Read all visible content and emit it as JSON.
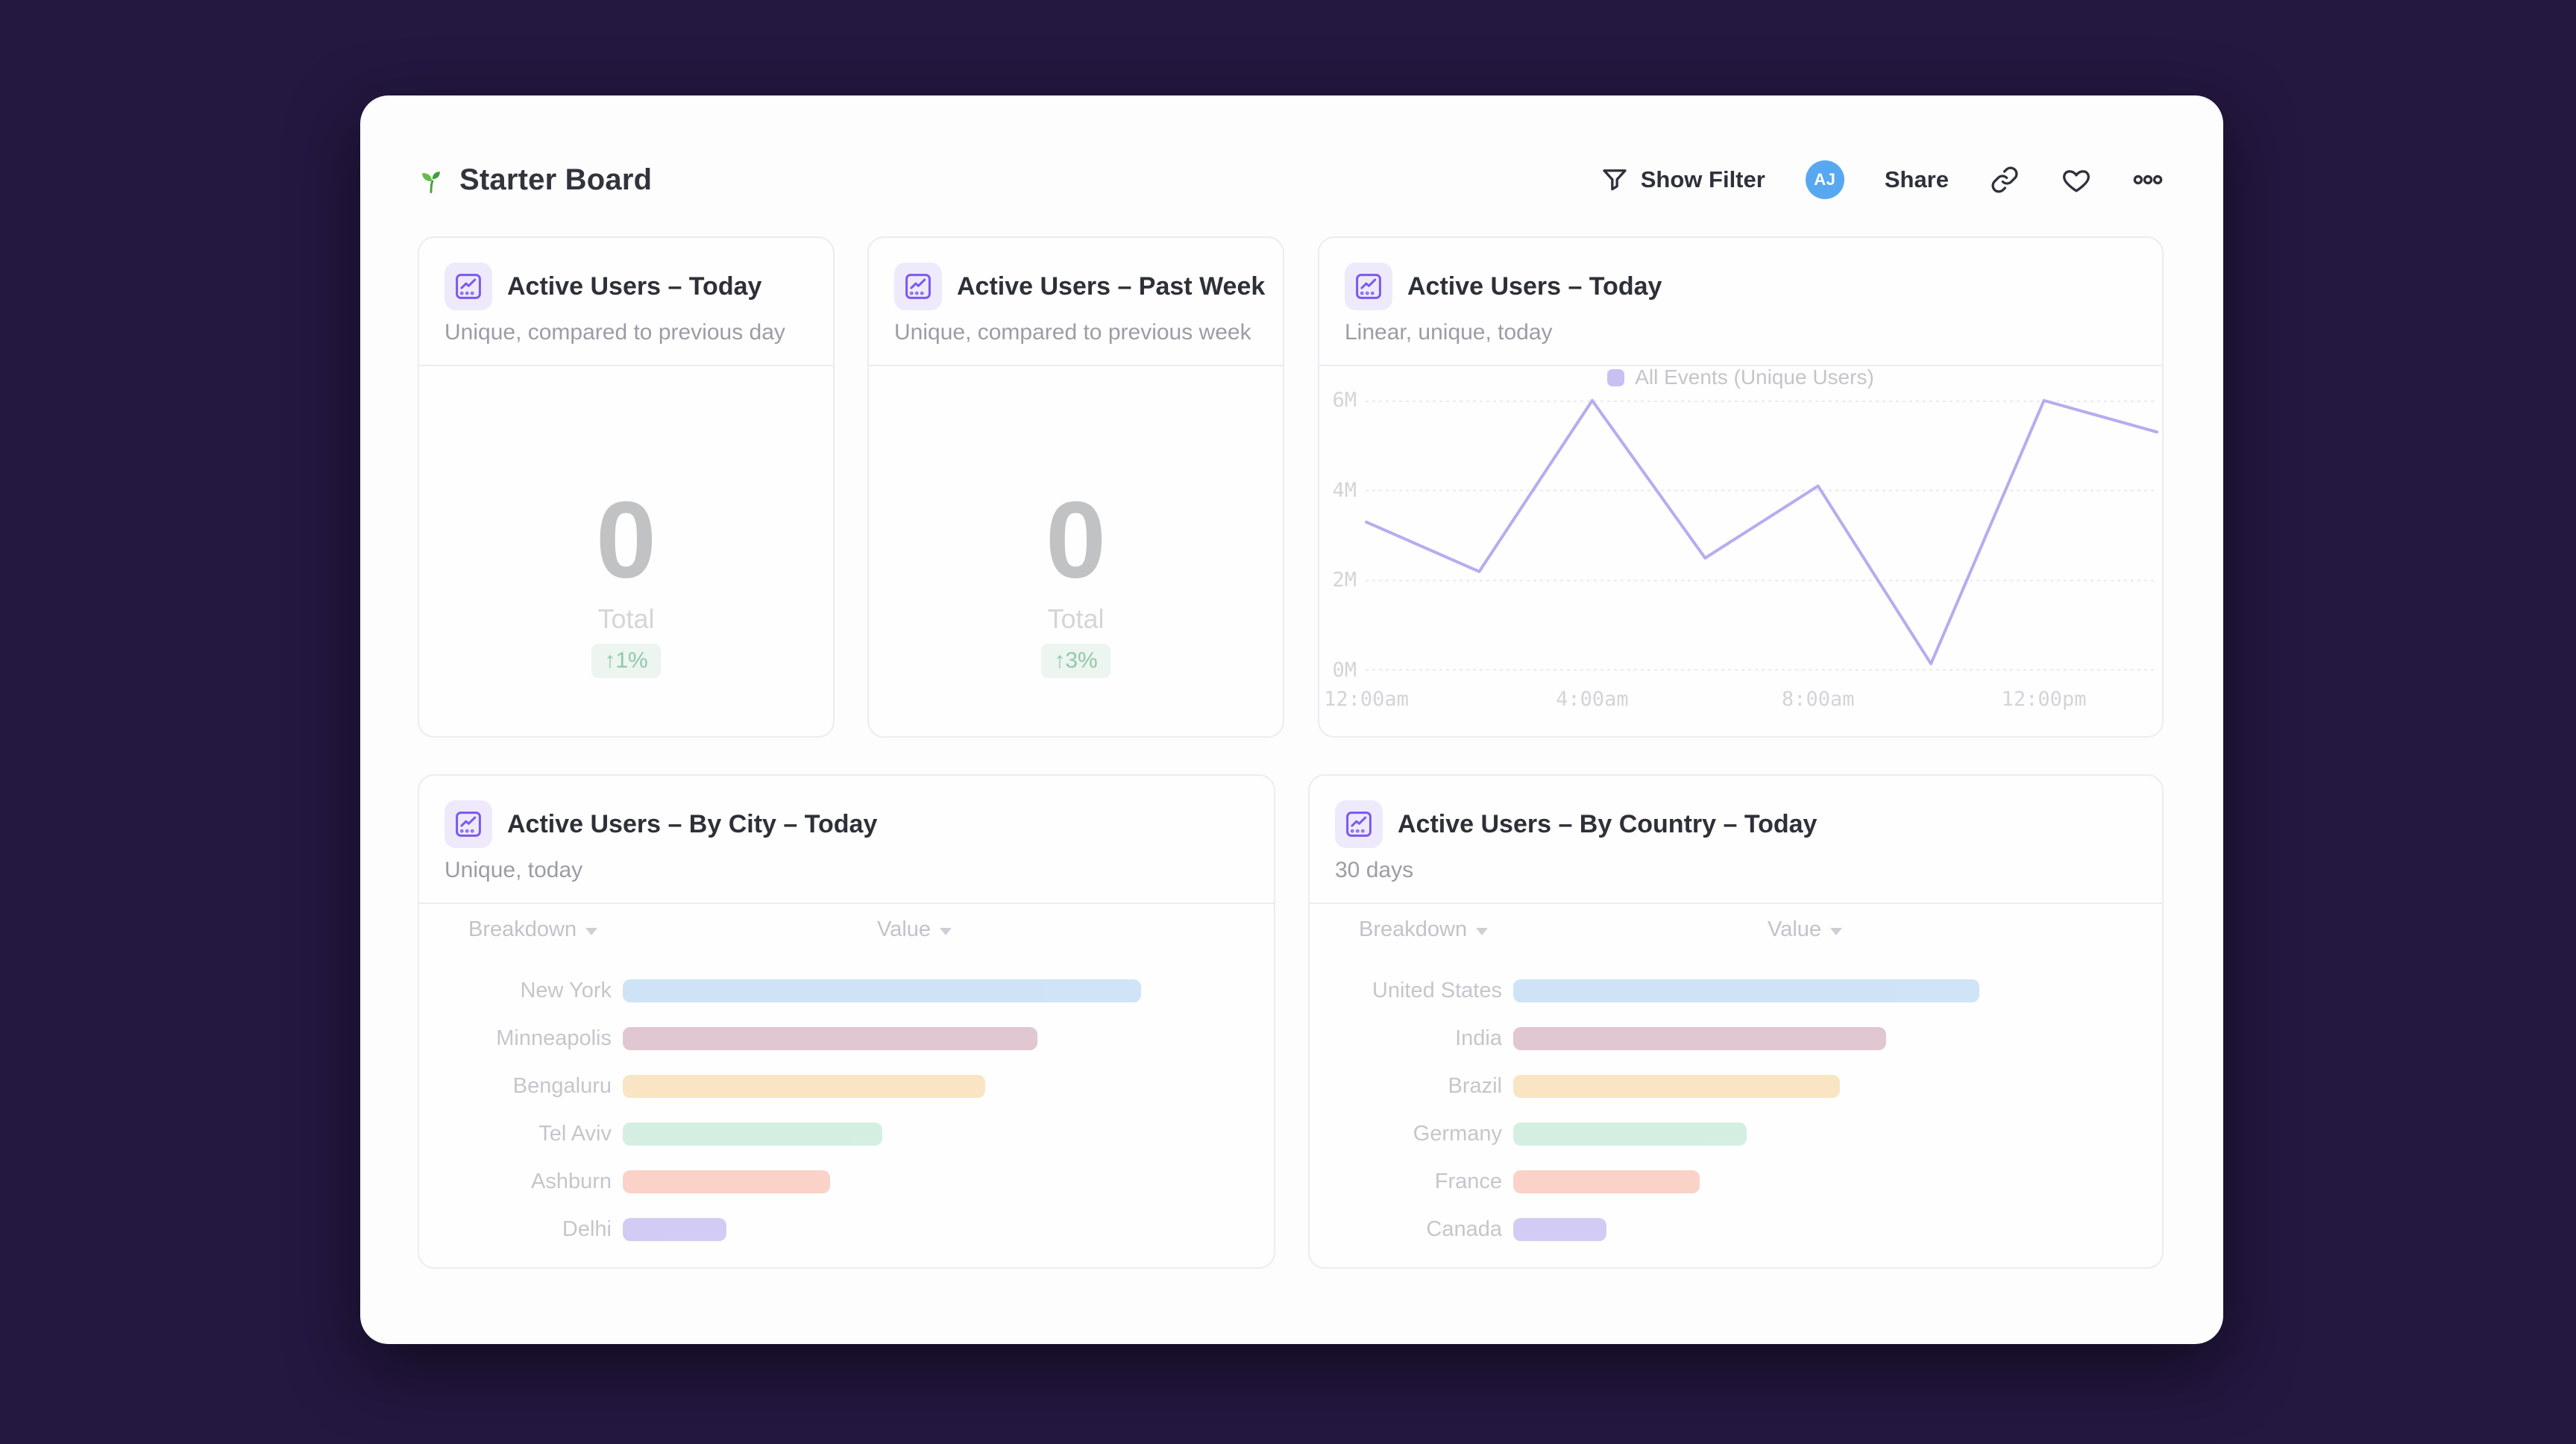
{
  "page": {
    "background": "#241740",
    "panel_background": "#fdfdfe"
  },
  "board": {
    "title": "Starter Board",
    "title_icon": "seedling",
    "toolbar": {
      "show_filter": "Show Filter",
      "avatar_initials": "AJ",
      "avatar_color": "#58a8f1",
      "share": "Share"
    }
  },
  "cards": [
    {
      "title": "Active Users – Today",
      "subtitle": "Unique, compared to previous day",
      "big_value": "0",
      "value_label": "Total",
      "change_badge": "↑1%",
      "change_color": "#3c9b6a"
    },
    {
      "title": "Active Users – Past Week",
      "subtitle": "Unique, compared to previous week",
      "big_value": "0",
      "value_label": "Total",
      "change_badge": "↑3%",
      "change_color": "#3c9b6a"
    },
    {
      "title": "Active Users – Today",
      "subtitle": "Linear, unique, today"
    },
    {
      "title": "Active Users – By City – Today",
      "subtitle": "Unique, today"
    },
    {
      "title": "Active Users – By Country – Today",
      "subtitle": "30 days"
    }
  ],
  "chart_data": [
    {
      "type": "line",
      "title": "Active Users – Today",
      "legend": [
        "All Events (Unique Users)"
      ],
      "legend_position": "top-center",
      "legend_swatch_color": "#9d8eeb",
      "line_color": "#7c6ae4",
      "grid": "horizontal-dotted",
      "x_hours": [
        0,
        2,
        4,
        6,
        8,
        10,
        12,
        14
      ],
      "values_millions": [
        3.3,
        2.2,
        6.0,
        2.5,
        4.1,
        0.15,
        6.0,
        5.3
      ],
      "x_tick_labels": [
        "12:00am",
        "4:00am",
        "8:00am",
        "12:00pm"
      ],
      "x_tick_hours": [
        0,
        4,
        8,
        12
      ],
      "y_tick_labels_top_to_bottom": [
        "6M",
        "4M",
        "2M",
        "0M"
      ],
      "ylim_millions": [
        0,
        6
      ]
    },
    {
      "type": "bar",
      "orientation": "horizontal",
      "title": "Active Users – By City – Today",
      "columns": [
        "Breakdown",
        "Value"
      ],
      "categories": [
        "New York",
        "Minneapolis",
        "Bengaluru",
        "Tel Aviv",
        "Ashburn",
        "Delhi"
      ],
      "values_relative": [
        1.0,
        0.8,
        0.7,
        0.5,
        0.4,
        0.2
      ],
      "bar_colors": [
        "#a7cff0",
        "#ca9baf",
        "#f6d294",
        "#b2e4ca",
        "#faaf9b",
        "#afa4ed"
      ]
    },
    {
      "type": "bar",
      "orientation": "horizontal",
      "title": "Active Users – By Country – Today",
      "columns": [
        "Breakdown",
        "Value"
      ],
      "categories": [
        "United States",
        "India",
        "Brazil",
        "Germany",
        "France",
        "Canada"
      ],
      "values_relative": [
        1.0,
        0.8,
        0.7,
        0.5,
        0.4,
        0.2
      ],
      "bar_colors": [
        "#a7cff0",
        "#ca9baf",
        "#f6d294",
        "#b2e4ca",
        "#faaf9b",
        "#afa4ed"
      ]
    }
  ]
}
